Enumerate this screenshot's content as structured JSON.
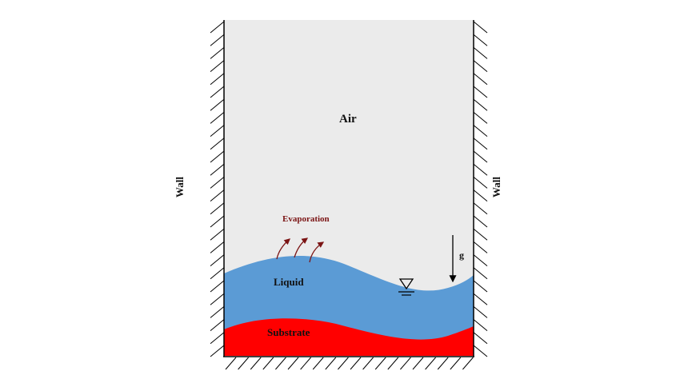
{
  "labels": {
    "air": "Air",
    "liquid": "Liquid",
    "substrate": "Substrate",
    "evaporation": "Evaporation",
    "gravity": "g",
    "wall_left": "Wall",
    "wall_right": "Wall"
  },
  "colors": {
    "air": "#ebebeb",
    "liquid": "#5b9bd5",
    "substrate": "#ff0000",
    "evaporation": "#7b1414",
    "lines": "#000000"
  },
  "icons": [
    "free-surface-triangle-icon",
    "gravity-arrow-icon",
    "evaporation-arrow-icon",
    "wall-hatching"
  ]
}
